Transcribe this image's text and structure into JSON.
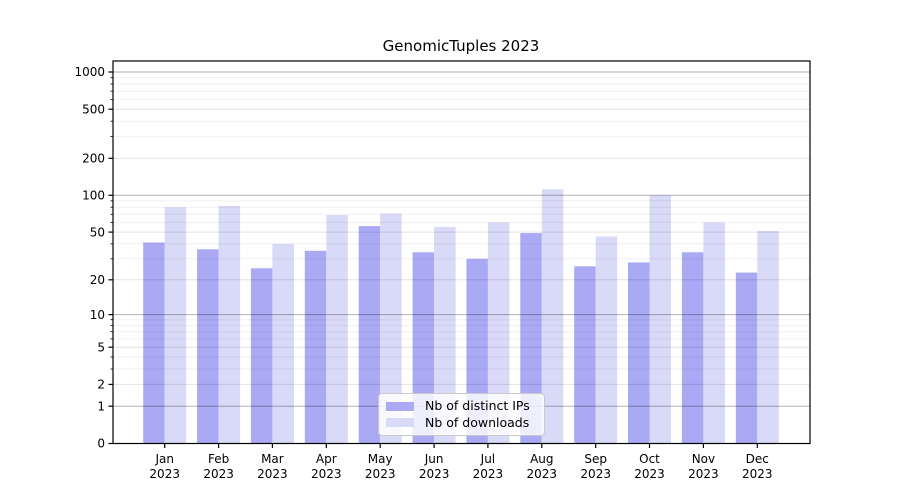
{
  "chart_data": {
    "type": "bar",
    "title": "GenomicTuples 2023",
    "x_year": "2023",
    "categories": [
      "Jan",
      "Feb",
      "Mar",
      "Apr",
      "May",
      "Jun",
      "Jul",
      "Aug",
      "Sep",
      "Oct",
      "Nov",
      "Dec"
    ],
    "series": [
      {
        "name": "Nb of distinct IPs",
        "color": "#a9a9f4",
        "values": [
          41,
          36,
          25,
          35,
          56,
          34,
          30,
          49,
          26,
          28,
          34,
          23
        ]
      },
      {
        "name": "Nb of downloads",
        "color": "#d9d9f8",
        "values": [
          80,
          82,
          40,
          69,
          71,
          55,
          60,
          112,
          46,
          100,
          60,
          51
        ]
      }
    ],
    "yscale": "log1p",
    "ylim": [
      0,
      1000
    ],
    "yticks": [
      0,
      1,
      2,
      5,
      10,
      20,
      50,
      100,
      200,
      500,
      1000
    ],
    "yticks_decade": [
      1,
      10,
      100,
      1000
    ],
    "yticks_minor": [
      3,
      4,
      6,
      7,
      8,
      9,
      30,
      40,
      60,
      70,
      80,
      90,
      300,
      400,
      600,
      700,
      800,
      900
    ],
    "grid": true,
    "legend_position": "lower center inside"
  }
}
